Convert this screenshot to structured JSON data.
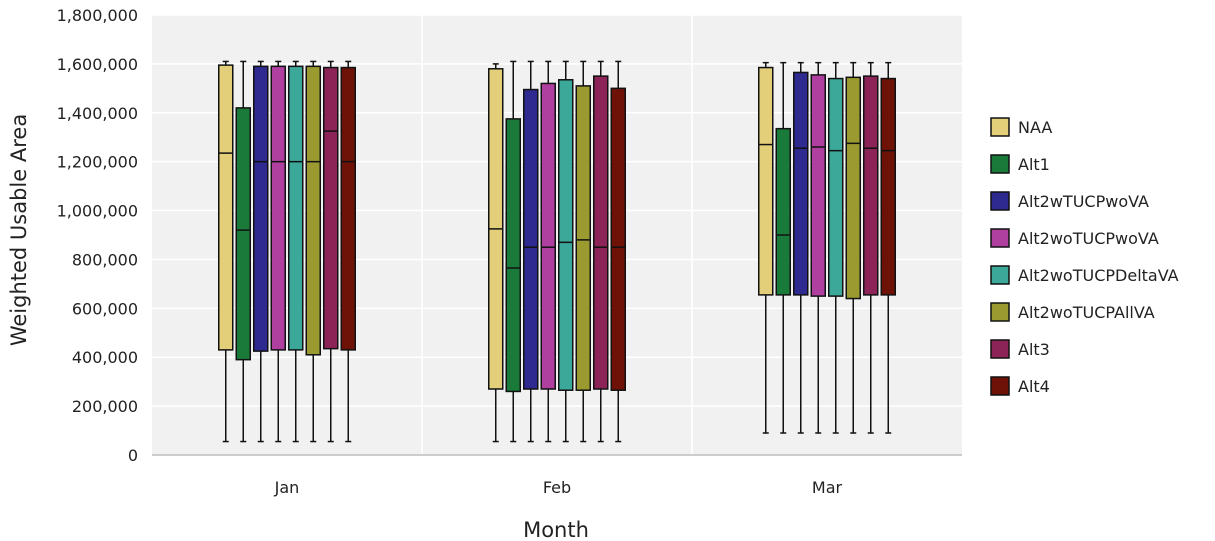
{
  "chart_data": {
    "type": "boxplot",
    "xlabel": "Month",
    "ylabel": "Weighted Usable Area",
    "ylim": [
      0,
      1800000
    ],
    "yticks": [
      0,
      200000,
      400000,
      600000,
      800000,
      1000000,
      1200000,
      1400000,
      1600000,
      1800000
    ],
    "ytick_labels": [
      "0",
      "200,000",
      "400,000",
      "600,000",
      "800,000",
      "1,000,000",
      "1,200,000",
      "1,400,000",
      "1,600,000",
      "1,800,000"
    ],
    "categories": [
      "Jan",
      "Feb",
      "Mar"
    ],
    "grid": true,
    "legend_position": "right",
    "series": [
      {
        "name": "NAA",
        "color": "#e3cf7a",
        "data": [
          {
            "min": 55000,
            "q1": 430000,
            "median": 1235000,
            "q3": 1595000,
            "max": 1610000
          },
          {
            "min": 55000,
            "q1": 270000,
            "median": 925000,
            "q3": 1580000,
            "max": 1600000
          },
          {
            "min": 90000,
            "q1": 655000,
            "median": 1270000,
            "q3": 1585000,
            "max": 1605000
          }
        ]
      },
      {
        "name": "Alt1",
        "color": "#1a7a3a",
        "data": [
          {
            "min": 55000,
            "q1": 390000,
            "median": 920000,
            "q3": 1420000,
            "max": 1610000
          },
          {
            "min": 55000,
            "q1": 260000,
            "median": 765000,
            "q3": 1375000,
            "max": 1610000
          },
          {
            "min": 90000,
            "q1": 655000,
            "median": 900000,
            "q3": 1335000,
            "max": 1605000
          }
        ]
      },
      {
        "name": "Alt2wTUCPwoVA",
        "color": "#2e2a8f",
        "data": [
          {
            "min": 55000,
            "q1": 425000,
            "median": 1200000,
            "q3": 1590000,
            "max": 1610000
          },
          {
            "min": 55000,
            "q1": 270000,
            "median": 850000,
            "q3": 1495000,
            "max": 1610000
          },
          {
            "min": 90000,
            "q1": 655000,
            "median": 1255000,
            "q3": 1565000,
            "max": 1605000
          }
        ]
      },
      {
        "name": "Alt2woTUCPwoVA",
        "color": "#b040a0",
        "data": [
          {
            "min": 55000,
            "q1": 430000,
            "median": 1200000,
            "q3": 1590000,
            "max": 1610000
          },
          {
            "min": 55000,
            "q1": 270000,
            "median": 850000,
            "q3": 1520000,
            "max": 1610000
          },
          {
            "min": 90000,
            "q1": 650000,
            "median": 1260000,
            "q3": 1555000,
            "max": 1605000
          }
        ]
      },
      {
        "name": "Alt2woTUCPDeltaVA",
        "color": "#3ca89a",
        "data": [
          {
            "min": 55000,
            "q1": 430000,
            "median": 1200000,
            "q3": 1590000,
            "max": 1610000
          },
          {
            "min": 55000,
            "q1": 265000,
            "median": 870000,
            "q3": 1535000,
            "max": 1610000
          },
          {
            "min": 90000,
            "q1": 650000,
            "median": 1245000,
            "q3": 1540000,
            "max": 1605000
          }
        ]
      },
      {
        "name": "Alt2woTUCPAllVA",
        "color": "#9a9a30",
        "data": [
          {
            "min": 55000,
            "q1": 410000,
            "median": 1200000,
            "q3": 1590000,
            "max": 1610000
          },
          {
            "min": 55000,
            "q1": 265000,
            "median": 880000,
            "q3": 1510000,
            "max": 1610000
          },
          {
            "min": 90000,
            "q1": 640000,
            "median": 1275000,
            "q3": 1545000,
            "max": 1605000
          }
        ]
      },
      {
        "name": "Alt3",
        "color": "#8c2458",
        "data": [
          {
            "min": 55000,
            "q1": 435000,
            "median": 1325000,
            "q3": 1585000,
            "max": 1610000
          },
          {
            "min": 55000,
            "q1": 270000,
            "median": 850000,
            "q3": 1550000,
            "max": 1610000
          },
          {
            "min": 90000,
            "q1": 655000,
            "median": 1255000,
            "q3": 1550000,
            "max": 1605000
          }
        ]
      },
      {
        "name": "Alt4",
        "color": "#6e1208",
        "data": [
          {
            "min": 55000,
            "q1": 430000,
            "median": 1200000,
            "q3": 1585000,
            "max": 1610000
          },
          {
            "min": 55000,
            "q1": 265000,
            "median": 850000,
            "q3": 1500000,
            "max": 1610000
          },
          {
            "min": 90000,
            "q1": 655000,
            "median": 1245000,
            "q3": 1540000,
            "max": 1605000
          }
        ]
      }
    ]
  }
}
